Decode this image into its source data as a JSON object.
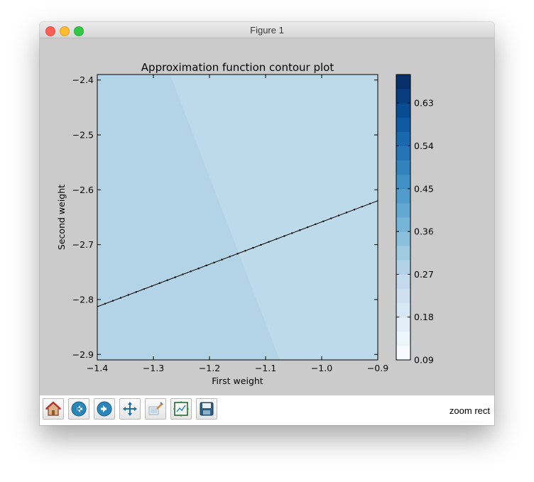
{
  "window": {
    "title": "Figure 1",
    "status_text": "zoom rect"
  },
  "toolbar": {
    "buttons": [
      {
        "name": "home",
        "icon": "home-icon"
      },
      {
        "name": "back",
        "icon": "back-arrow-icon"
      },
      {
        "name": "forward",
        "icon": "forward-arrow-icon"
      },
      {
        "name": "pan",
        "icon": "move-icon"
      },
      {
        "name": "zoom",
        "icon": "zoom-icon"
      },
      {
        "name": "subplots",
        "icon": "subplots-icon"
      },
      {
        "name": "save",
        "icon": "floppy-disk-icon"
      }
    ]
  },
  "chart_data": {
    "type": "contour",
    "title": "Approximation function contour plot",
    "xlabel": "First weight",
    "ylabel": "Second weight",
    "xlim": [
      -1.4,
      -0.9
    ],
    "ylim": [
      -2.91,
      -2.39
    ],
    "xticks": [
      "−1.4",
      "−1.3",
      "−1.2",
      "−1.1",
      "−1.0",
      "−0.9"
    ],
    "yticks": [
      "−2.4",
      "−2.5",
      "−2.6",
      "−2.7",
      "−2.8",
      "−2.9"
    ],
    "xtick_values": [
      -1.4,
      -1.3,
      -1.2,
      -1.1,
      -1.0,
      -0.9
    ],
    "ytick_values": [
      -2.4,
      -2.5,
      -2.6,
      -2.7,
      -2.8,
      -2.9
    ],
    "regions": [
      {
        "level": 0.31,
        "color": "#b2d4e6"
      },
      {
        "level": 0.29,
        "color": "#bcdaea"
      }
    ],
    "region_boundary": {
      "x": [
        -1.27,
        -1.075
      ],
      "y": [
        -2.39,
        -2.91
      ]
    },
    "trajectory": {
      "x": [
        -1.4,
        -0.9
      ],
      "y": [
        -2.813,
        -2.62
      ],
      "points": 36
    },
    "colorbar": {
      "cmap": "Blues",
      "min": 0.09,
      "max": 0.69,
      "ticks": [
        "0.63",
        "0.54",
        "0.45",
        "0.36",
        "0.27",
        "0.18",
        "0.09"
      ],
      "tick_values": [
        0.63,
        0.54,
        0.45,
        0.36,
        0.27,
        0.18,
        0.09
      ],
      "levels": 20
    }
  }
}
